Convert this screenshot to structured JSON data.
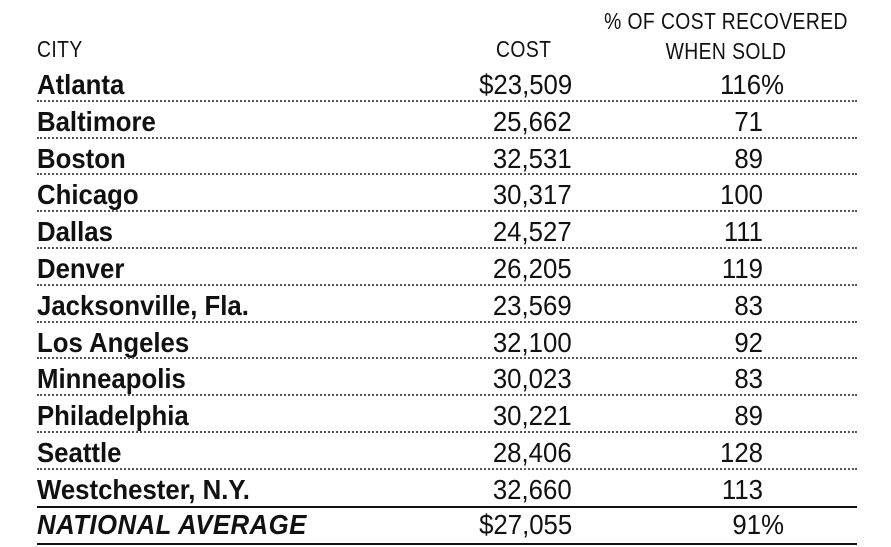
{
  "headers": {
    "city": "CITY",
    "cost": "COST",
    "pct_line1": "% OF COST RECOVERED",
    "pct_line2": "WHEN SOLD"
  },
  "rows": [
    {
      "city": "Atlanta",
      "cost": "$23,509",
      "pct": "116%"
    },
    {
      "city": "Baltimore",
      "cost": "25,662",
      "pct": "71"
    },
    {
      "city": "Boston",
      "cost": "32,531",
      "pct": "89"
    },
    {
      "city": "Chicago",
      "cost": "30,317",
      "pct": "100"
    },
    {
      "city": "Dallas",
      "cost": "24,527",
      "pct": "111"
    },
    {
      "city": "Denver",
      "cost": "26,205",
      "pct": "119"
    },
    {
      "city": "Jacksonville, Fla.",
      "cost": "23,569",
      "pct": "83"
    },
    {
      "city": "Los Angeles",
      "cost": "32,100",
      "pct": "92"
    },
    {
      "city": "Minneapolis",
      "cost": "30,023",
      "pct": "83"
    },
    {
      "city": "Philadelphia",
      "cost": "30,221",
      "pct": "89"
    },
    {
      "city": "Seattle",
      "cost": "28,406",
      "pct": "128"
    },
    {
      "city": "Westchester, N.Y.",
      "cost": "32,660",
      "pct": "113"
    }
  ],
  "total": {
    "city": "NATIONAL AVERAGE",
    "cost": "$27,055",
    "pct": "91%"
  }
}
